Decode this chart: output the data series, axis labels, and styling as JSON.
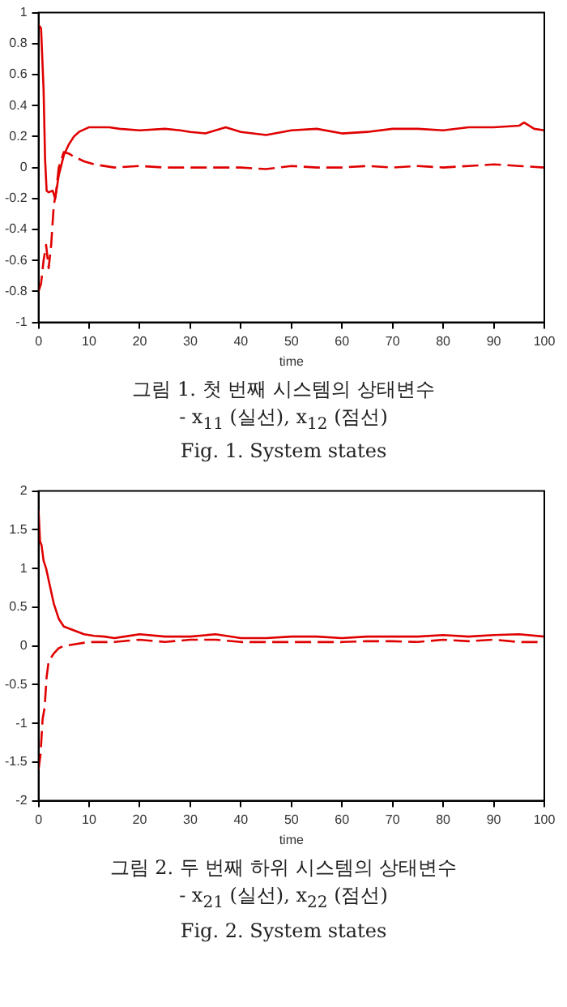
{
  "chart_data": [
    {
      "type": "line",
      "xlabel": "time",
      "xlim": [
        0,
        100
      ],
      "xticks": [
        0,
        10,
        20,
        30,
        40,
        50,
        60,
        70,
        80,
        90,
        100
      ],
      "ylim": [
        -1,
        1
      ],
      "yticks": [
        -1,
        -0.8,
        -0.6,
        -0.4,
        -0.2,
        0,
        0.2,
        0.4,
        0.6,
        0.8,
        1
      ],
      "grid": false,
      "legend": false,
      "annotations": [
        "그림 1. 첫 번째 시스템의 상태변수",
        "- x$_{11}$ (실선), x$_{12}$ (점선)",
        "Fig. 1. System states"
      ],
      "series": [
        {
          "color": "#e00000",
          "line_style": "solid",
          "x": [
            0,
            0.5,
            1,
            1.3,
            1.6,
            2,
            2.8,
            3.3,
            4,
            5,
            6,
            7,
            8,
            10,
            12,
            14,
            16,
            20,
            25,
            28,
            30,
            33,
            35,
            37,
            40,
            45,
            50,
            55,
            60,
            65,
            70,
            75,
            80,
            85,
            90,
            95,
            96,
            98,
            100
          ],
          "values": [
            0.92,
            0.9,
            0.5,
            0.05,
            -0.15,
            -0.16,
            -0.15,
            -0.2,
            -0.05,
            0.08,
            0.15,
            0.2,
            0.23,
            0.26,
            0.26,
            0.26,
            0.25,
            0.24,
            0.25,
            0.24,
            0.23,
            0.22,
            0.24,
            0.26,
            0.23,
            0.21,
            0.24,
            0.25,
            0.22,
            0.23,
            0.25,
            0.25,
            0.24,
            0.26,
            0.26,
            0.27,
            0.29,
            0.25,
            0.24
          ]
        },
        {
          "color": "#e00000",
          "line_style": "dashed",
          "x": [
            0,
            0.5,
            1,
            1.5,
            2,
            2.5,
            3,
            3.5,
            4,
            5,
            6,
            7,
            9,
            11,
            15,
            20,
            25,
            30,
            40,
            45,
            50,
            55,
            60,
            65,
            70,
            75,
            80,
            85,
            90,
            95,
            100
          ],
          "values": [
            -0.8,
            -0.75,
            -0.6,
            -0.5,
            -0.65,
            -0.5,
            -0.25,
            -0.15,
            0.0,
            0.1,
            0.09,
            0.07,
            0.04,
            0.02,
            0.0,
            0.01,
            0.0,
            0.0,
            0.0,
            -0.01,
            0.01,
            0.0,
            0.0,
            0.01,
            0.0,
            0.01,
            0.0,
            0.01,
            0.02,
            0.01,
            0.0
          ]
        }
      ]
    },
    {
      "type": "line",
      "xlabel": "time",
      "xlim": [
        0,
        100
      ],
      "xticks": [
        0,
        10,
        20,
        30,
        40,
        50,
        60,
        70,
        80,
        90,
        100
      ],
      "ylim": [
        -2,
        2
      ],
      "yticks": [
        -2,
        -1.5,
        -1,
        -0.5,
        0,
        0.5,
        1,
        1.5,
        2
      ],
      "grid": false,
      "legend": false,
      "annotations": [
        "그림 2. 두 번째 하위 시스템의 상태변수",
        "- x$_{21}$ (실선), x$_{22}$ (점선)",
        "Fig. 2. System states"
      ],
      "series": [
        {
          "color": "#e00000",
          "line_style": "solid",
          "x": [
            0,
            0.3,
            0.6,
            1,
            1.5,
            2,
            3,
            4,
            5,
            7,
            9,
            11,
            13,
            15,
            17,
            20,
            25,
            30,
            35,
            40,
            45,
            50,
            55,
            60,
            65,
            70,
            75,
            80,
            85,
            90,
            95,
            100
          ],
          "values": [
            1.75,
            1.35,
            1.3,
            1.1,
            1.0,
            0.85,
            0.55,
            0.35,
            0.25,
            0.2,
            0.15,
            0.13,
            0.12,
            0.1,
            0.12,
            0.15,
            0.12,
            0.12,
            0.15,
            0.1,
            0.1,
            0.12,
            0.12,
            0.1,
            0.12,
            0.12,
            0.12,
            0.14,
            0.12,
            0.14,
            0.15,
            0.12
          ]
        },
        {
          "color": "#e00000",
          "line_style": "dashed",
          "x": [
            0,
            0.4,
            0.8,
            1.2,
            1.6,
            2,
            3,
            4,
            5,
            7,
            10,
            15,
            20,
            25,
            30,
            35,
            40,
            45,
            50,
            55,
            60,
            65,
            70,
            75,
            80,
            85,
            90,
            95,
            100
          ],
          "values": [
            -1.6,
            -1.4,
            -0.95,
            -0.8,
            -0.4,
            -0.2,
            -0.1,
            -0.03,
            0.0,
            0.02,
            0.05,
            0.05,
            0.08,
            0.05,
            0.08,
            0.08,
            0.05,
            0.05,
            0.05,
            0.05,
            0.05,
            0.06,
            0.06,
            0.05,
            0.08,
            0.06,
            0.08,
            0.05,
            0.05
          ]
        }
      ]
    }
  ]
}
